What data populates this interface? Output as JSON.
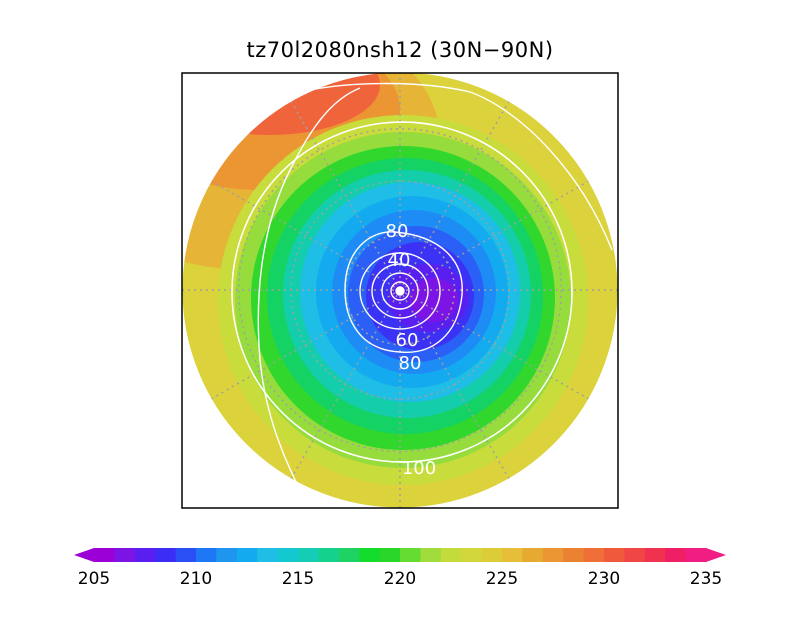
{
  "title": "tz70l2080nsh12 (30N−90N)",
  "map": {
    "projection": "north polar stereographic",
    "lat_range": [
      30,
      90
    ],
    "contour_labels": [
      "80",
      "40",
      "60",
      "80",
      "100"
    ]
  },
  "colorbar": {
    "min": 205,
    "max": 235,
    "step": 1,
    "tick_labels": [
      "205",
      "210",
      "215",
      "220",
      "225",
      "230",
      "235"
    ],
    "colors": [
      "#9b00d6",
      "#7d14e6",
      "#5a1ef0",
      "#3c2df5",
      "#2a50f5",
      "#1e78f5",
      "#1e96f0",
      "#14aaf0",
      "#1ebee6",
      "#14c8d2",
      "#14cdb4",
      "#14d28c",
      "#1ed264",
      "#14dc2d",
      "#28d728",
      "#64dc32",
      "#a0dc3c",
      "#c3dc3c",
      "#d2d73c",
      "#dccd37",
      "#e6be37",
      "#e6aa32",
      "#eb9632",
      "#eb8232",
      "#f06e37",
      "#f05a3c",
      "#f04646",
      "#f03250",
      "#f01e64",
      "#f01e82"
    ]
  }
}
